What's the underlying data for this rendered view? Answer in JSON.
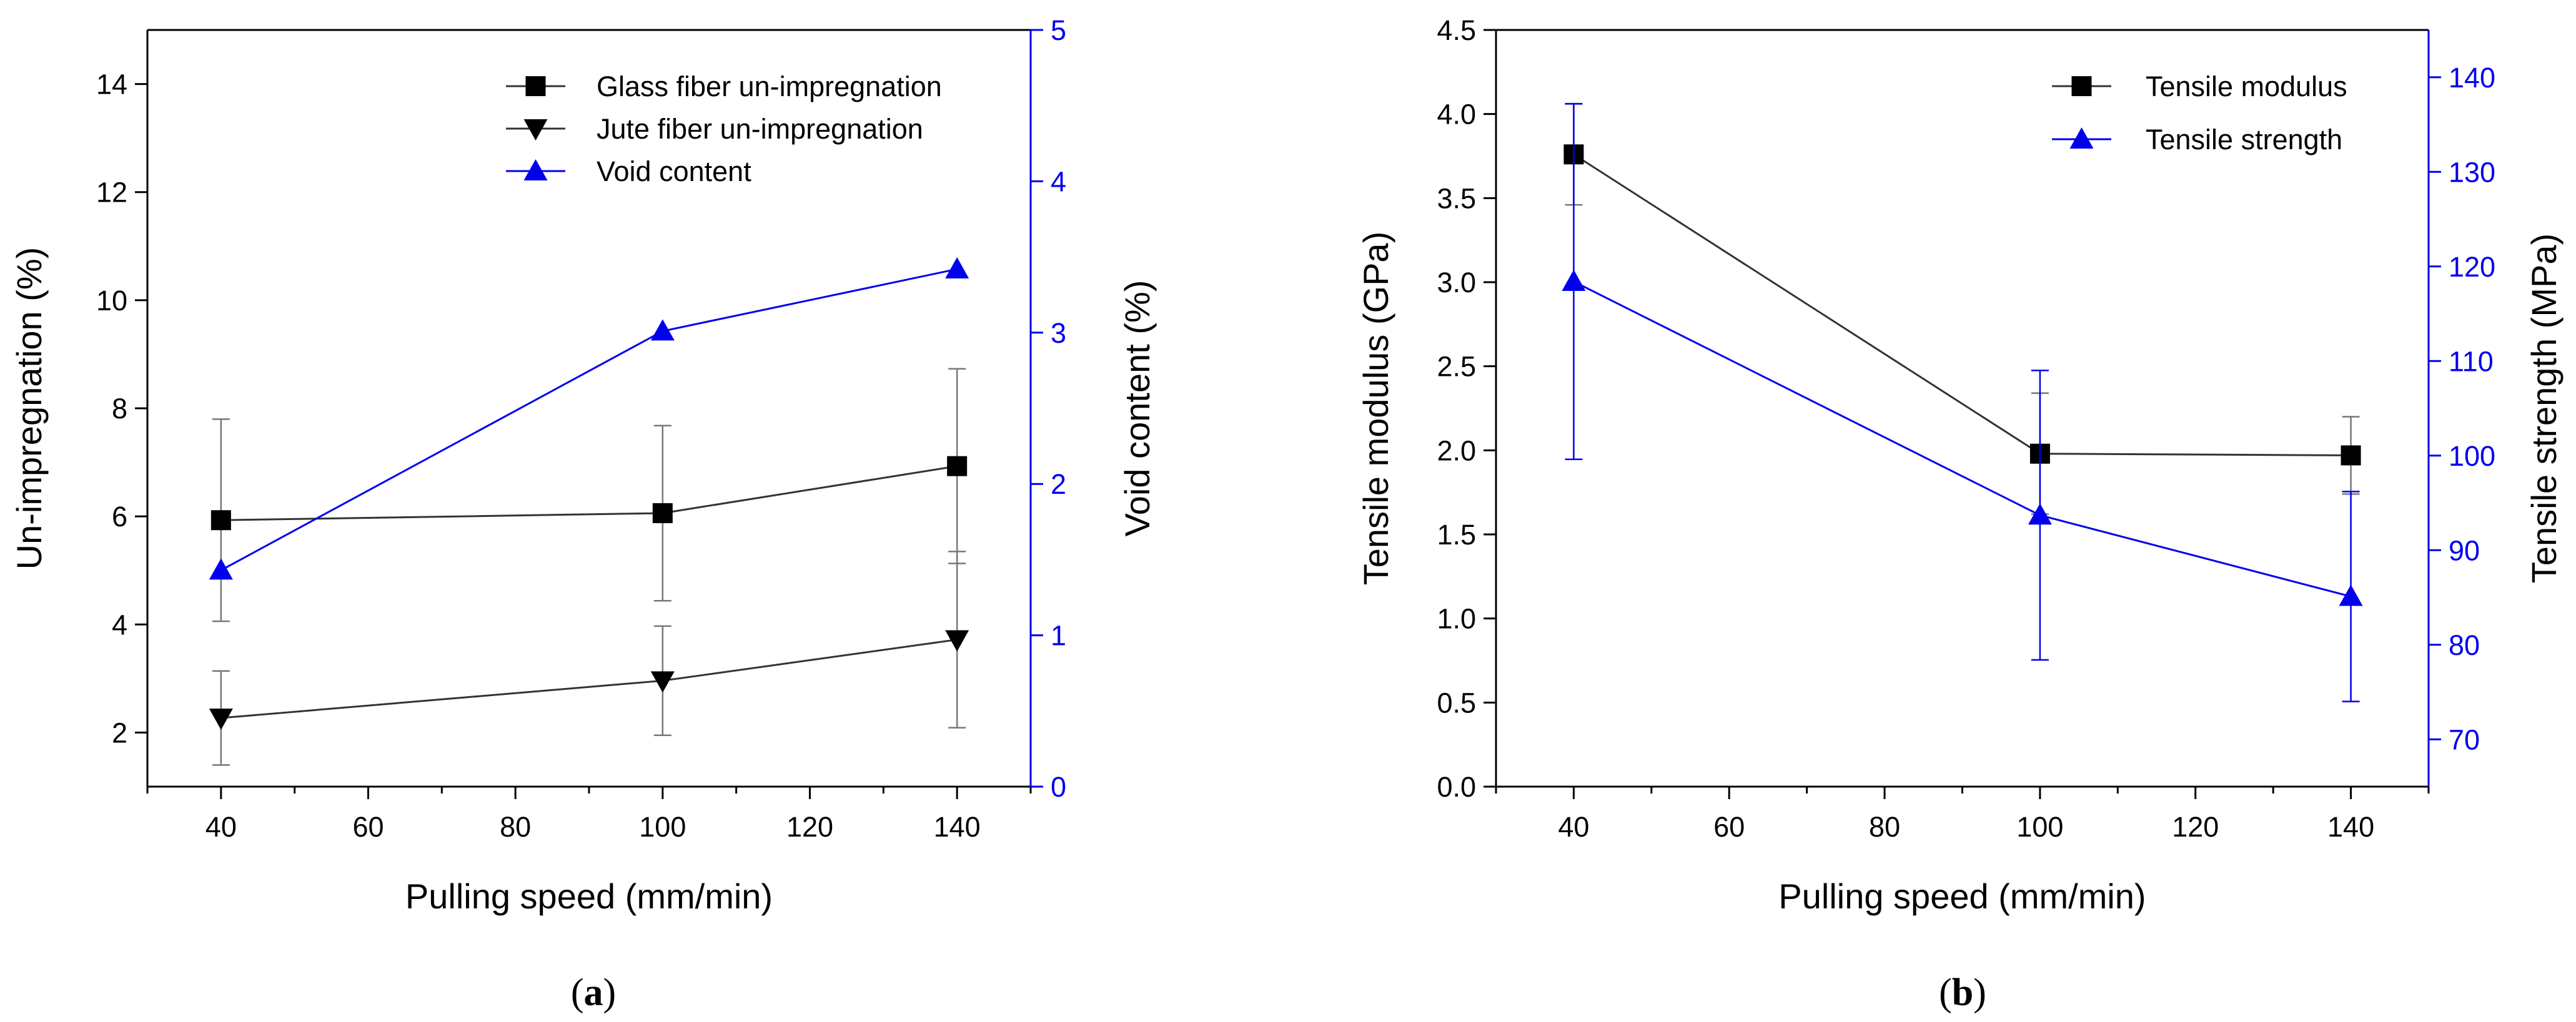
{
  "colors": {
    "axis": "#000000",
    "black_series": "#000000",
    "blue_series": "#0000ee",
    "error_gray": "#777777",
    "error_blue": "#0000ee"
  },
  "chart_data": [
    {
      "id": "a",
      "type": "line",
      "panel_label": {
        "open": "(",
        "letter": "a",
        "close": ")"
      },
      "xlabel": "Pulling speed (mm/min)",
      "ylabel_left": "Un-impregnation (%)",
      "ylabel_right": "Void content (%)",
      "xlim": [
        30,
        150
      ],
      "ylim_left": [
        1,
        15
      ],
      "ylim_right": [
        0,
        5
      ],
      "x_ticks": [
        40,
        60,
        80,
        100,
        120,
        140
      ],
      "y_left_ticks": [
        2,
        4,
        6,
        8,
        10,
        12,
        14
      ],
      "y_right_ticks": [
        0,
        1,
        2,
        3,
        4,
        5
      ],
      "legend_position": "top-right",
      "series": [
        {
          "name": "Glass fiber un-impregnation",
          "axis": "left",
          "marker": "square",
          "color": "#000000",
          "x": [
            40,
            100,
            140
          ],
          "y": [
            5.93,
            6.06,
            6.93
          ],
          "err": [
            1.87,
            1.62,
            1.8
          ]
        },
        {
          "name": "Jute fiber un-impregnation",
          "axis": "left",
          "marker": "triangle-down",
          "color": "#000000",
          "x": [
            40,
            100,
            140
          ],
          "y": [
            2.27,
            2.96,
            3.72
          ],
          "err": [
            0.87,
            1.01,
            1.63
          ]
        },
        {
          "name": "Void content",
          "axis": "right",
          "marker": "triangle-up",
          "color": "#0000ee",
          "x": [
            40,
            100,
            140
          ],
          "y": [
            1.43,
            3.01,
            3.42
          ],
          "err": [
            0,
            0,
            0
          ]
        }
      ]
    },
    {
      "id": "b",
      "type": "line",
      "panel_label": {
        "open": "(",
        "letter": "b",
        "close": ")"
      },
      "xlabel": "Pulling speed (mm/min)",
      "ylabel_left": "Tensile modulus (GPa)",
      "ylabel_right": "Tensile strength (MPa)",
      "xlim": [
        30,
        150
      ],
      "ylim_left": [
        0,
        4.5
      ],
      "ylim_right": [
        65,
        145
      ],
      "x_ticks": [
        40,
        60,
        80,
        100,
        120,
        140
      ],
      "y_left_ticks": [
        "0.0",
        "0.5",
        "1.0",
        "1.5",
        "2.0",
        "2.5",
        "3.0",
        "3.5",
        "4.0",
        "4.5"
      ],
      "y_right_ticks": [
        70,
        80,
        90,
        100,
        110,
        120,
        130,
        140
      ],
      "legend_position": "top-right",
      "series": [
        {
          "name": "Tensile modulus",
          "axis": "left",
          "marker": "square",
          "color": "#000000",
          "x": [
            40,
            100,
            140
          ],
          "y": [
            3.76,
            1.98,
            1.97
          ],
          "err": [
            0.3,
            0.36,
            0.23
          ]
        },
        {
          "name": "Tensile strength",
          "axis": "right",
          "marker": "triangle-up",
          "color": "#0000ee",
          "x": [
            40,
            100,
            140
          ],
          "y": [
            118.4,
            93.7,
            85.1
          ],
          "err": [
            18.8,
            15.3,
            11.1
          ]
        }
      ]
    }
  ]
}
